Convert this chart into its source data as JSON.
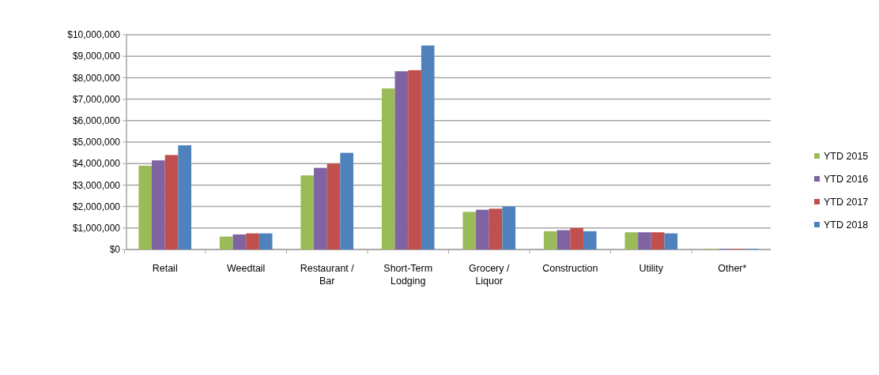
{
  "chart_data": {
    "type": "bar",
    "categories": [
      "Retail",
      "Weedtail",
      "Restaurant / Bar",
      "Short-Term Lodging",
      "Grocery / Liquor",
      "Construction",
      "Utility",
      "Other*"
    ],
    "series": [
      {
        "name": "YTD 2015",
        "color": "#9bbb59",
        "values": [
          3900000,
          600000,
          3450000,
          7500000,
          1750000,
          850000,
          800000,
          30000
        ]
      },
      {
        "name": "YTD 2016",
        "color": "#8064a2",
        "values": [
          4150000,
          700000,
          3800000,
          8300000,
          1850000,
          900000,
          800000,
          30000
        ]
      },
      {
        "name": "YTD 2017",
        "color": "#c0504d",
        "values": [
          4400000,
          750000,
          4000000,
          8350000,
          1900000,
          1000000,
          800000,
          30000
        ]
      },
      {
        "name": "YTD 2018",
        "color": "#4f81bd",
        "values": [
          4850000,
          750000,
          4500000,
          9500000,
          2000000,
          850000,
          750000,
          30000
        ]
      }
    ],
    "ylim": [
      0,
      10000000
    ],
    "yticks": [
      {
        "value": 0,
        "label": "$0"
      },
      {
        "value": 1000000,
        "label": "$1,000,000"
      },
      {
        "value": 2000000,
        "label": "$2,000,000"
      },
      {
        "value": 3000000,
        "label": "$3,000,000"
      },
      {
        "value": 4000000,
        "label": "$4,000,000"
      },
      {
        "value": 5000000,
        "label": "$5,000,000"
      },
      {
        "value": 6000000,
        "label": "$6,000,000"
      },
      {
        "value": 7000000,
        "label": "$7,000,000"
      },
      {
        "value": 8000000,
        "label": "$8,000,000"
      },
      {
        "value": 9000000,
        "label": "$9,000,000"
      },
      {
        "value": 10000000,
        "label": "$10,000,000"
      }
    ],
    "grid": "y",
    "legend": "right"
  }
}
